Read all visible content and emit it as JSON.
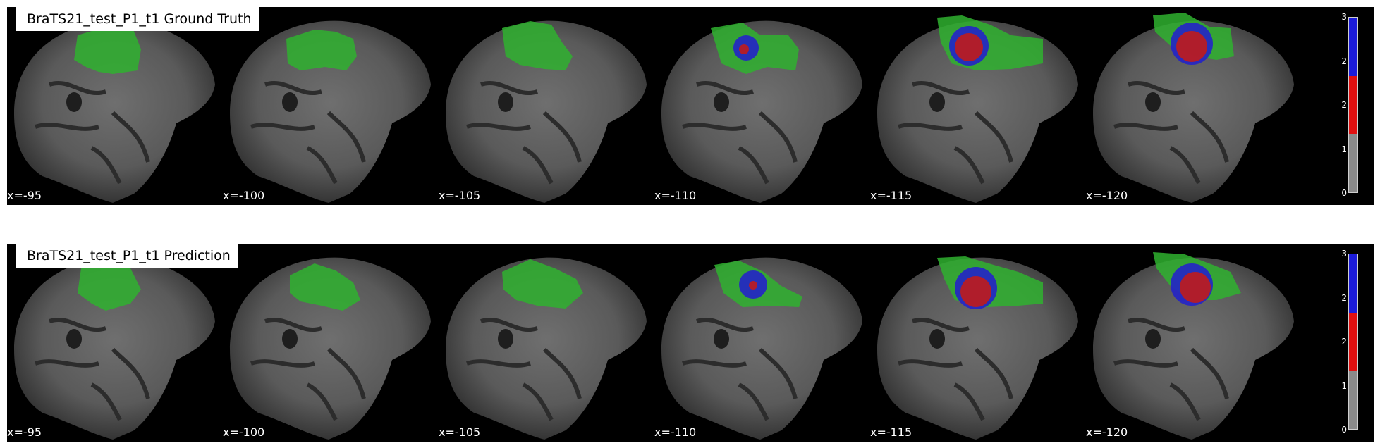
{
  "panels": [
    {
      "title": "BraTS21_test_P1_t1 Ground Truth",
      "slices": [
        {
          "label": "x=-95"
        },
        {
          "label": "x=-100"
        },
        {
          "label": "x=-105"
        },
        {
          "label": "x=-110"
        },
        {
          "label": "x=-115"
        },
        {
          "label": "x=-120"
        }
      ]
    },
    {
      "title": "BraTS21_test_P1_t1 Prediction",
      "slices": [
        {
          "label": "x=-95"
        },
        {
          "label": "x=-100"
        },
        {
          "label": "x=-105"
        },
        {
          "label": "x=-110"
        },
        {
          "label": "x=-115"
        },
        {
          "label": "x=-120"
        }
      ]
    }
  ],
  "colorbar": {
    "ticks": [
      "3",
      "2",
      "2",
      "1",
      "0"
    ],
    "colors": [
      "#1b1bd9",
      "#e01010",
      "#8a8a8a"
    ]
  }
}
